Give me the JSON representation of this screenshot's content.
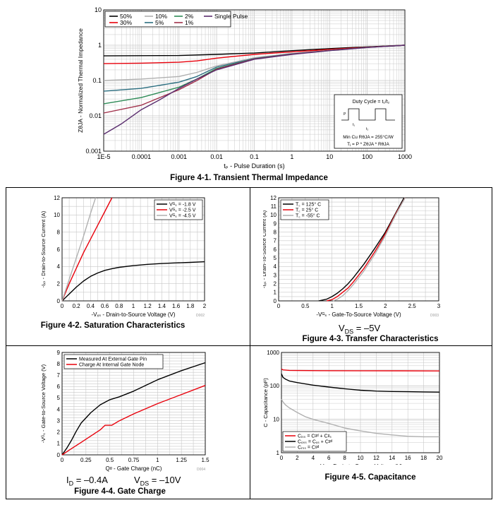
{
  "captions": {
    "fig1": "Figure 4-1. Transient Thermal Impedance",
    "fig2": "Figure 4-2. Saturation Characteristics",
    "fig3": "Figure 4-3. Transfer Characteristics",
    "fig4": "Figure 4-4. Gate Charge",
    "fig5": "Figure 4-5. Capacitance"
  },
  "conditions": {
    "fig3_vds": "V",
    "fig3_vds_sub": "DS",
    "fig3_vds_val": " = –5V",
    "fig4_id": "I",
    "fig4_id_sub": "D",
    "fig4_id_val": " = –0.4A",
    "fig4_vds": "V",
    "fig4_vds_sub": "DS",
    "fig4_vds_val": " = –10V"
  },
  "chart_data": [
    {
      "id": "fig1",
      "type": "line",
      "xscale": "log",
      "yscale": "log",
      "xlim": [
        1e-05,
        1000
      ],
      "ylim": [
        0.001,
        10
      ],
      "xticks": [
        1e-05,
        0.0001,
        0.001,
        0.01,
        0.1,
        1,
        10,
        100,
        1000
      ],
      "xtick_labels": [
        "1E-5",
        "0.0001",
        "0.001",
        "0.01",
        "0.1",
        "1",
        "10",
        "100",
        "1000"
      ],
      "yticks": [
        0.001,
        0.01,
        0.1,
        1,
        10
      ],
      "ytick_labels": [
        "0.001",
        "0.01",
        "0.1",
        "1",
        "10"
      ],
      "xlabel": "tₚ - Pulse Duration (s)",
      "ylabel": "ZθJA - Normalized Thermal Impedance",
      "grid": true,
      "legend_position": "top-left",
      "inset": {
        "line1": "Duty Cycle = t₁/t₂",
        "line2": "Min Cu RθJA = 255°C/W",
        "line3": "Tⱼ = P * ZθJA * RθJA",
        "t1": "t₁",
        "t2": "t₂",
        "p": "P"
      },
      "series": [
        {
          "name": "50%",
          "color": "#000000",
          "x": [
            1e-05,
            0.001,
            0.01,
            0.1,
            1,
            10,
            100,
            1000
          ],
          "y": [
            0.5,
            0.51,
            0.55,
            0.6,
            0.7,
            0.8,
            0.9,
            1.0
          ]
        },
        {
          "name": "30%",
          "color": "#e8000b",
          "x": [
            1e-05,
            0.0001,
            0.001,
            0.003,
            0.01,
            0.1,
            1,
            10,
            100,
            1000
          ],
          "y": [
            0.3,
            0.31,
            0.33,
            0.36,
            0.43,
            0.55,
            0.65,
            0.76,
            0.88,
            1.0
          ]
        },
        {
          "name": "10%",
          "color": "#b0b0b0",
          "x": [
            1e-05,
            0.0001,
            0.001,
            0.003,
            0.01,
            0.1,
            1,
            10,
            100,
            1000
          ],
          "y": [
            0.1,
            0.11,
            0.13,
            0.17,
            0.26,
            0.44,
            0.58,
            0.72,
            0.87,
            1.0
          ]
        },
        {
          "name": "5%",
          "color": "#2b6e80",
          "x": [
            1e-05,
            0.0001,
            0.001,
            0.003,
            0.01,
            0.1,
            1,
            10,
            100,
            1000
          ],
          "y": [
            0.05,
            0.06,
            0.09,
            0.13,
            0.24,
            0.42,
            0.57,
            0.71,
            0.87,
            1.0
          ]
        },
        {
          "name": "2%",
          "color": "#2e8b57",
          "x": [
            1e-05,
            0.0001,
            0.001,
            0.003,
            0.01,
            0.1,
            1,
            10,
            100,
            1000
          ],
          "y": [
            0.022,
            0.033,
            0.065,
            0.11,
            0.22,
            0.41,
            0.56,
            0.71,
            0.87,
            1.0
          ]
        },
        {
          "name": "1%",
          "color": "#a0304a",
          "x": [
            1e-05,
            0.0001,
            0.001,
            0.003,
            0.01,
            0.1,
            1,
            10,
            100,
            1000
          ],
          "y": [
            0.012,
            0.02,
            0.055,
            0.1,
            0.21,
            0.41,
            0.56,
            0.71,
            0.87,
            1.0
          ]
        },
        {
          "name": "Single Pulse",
          "color": "#5a2d6e",
          "x": [
            1e-05,
            3e-05,
            0.0001,
            0.0003,
            0.001,
            0.003,
            0.01,
            0.1,
            1,
            10,
            100,
            1000
          ],
          "y": [
            0.003,
            0.006,
            0.015,
            0.028,
            0.06,
            0.11,
            0.2,
            0.4,
            0.55,
            0.7,
            0.86,
            1.0
          ]
        }
      ]
    },
    {
      "id": "fig2",
      "type": "line",
      "xlim": [
        0,
        2
      ],
      "ylim": [
        0,
        12
      ],
      "xticks": [
        0,
        0.2,
        0.4,
        0.6,
        0.8,
        1,
        1.2,
        1.4,
        1.6,
        1.8,
        2
      ],
      "xtick_labels": [
        "0",
        "0.2",
        "0.4",
        "0.6",
        "0.8",
        "1",
        "1.2",
        "1.4",
        "1.6",
        "1.8",
        "2"
      ],
      "yticks": [
        0,
        2,
        4,
        6,
        8,
        10,
        12
      ],
      "ytick_labels": [
        "0",
        "2",
        "4",
        "6",
        "8",
        "10",
        "12"
      ],
      "xlabel": "-Vₓₛ - Drain-to-Source Voltage (V)",
      "ylabel": "-Iₓₛ - Drain-to-Source Current (A)",
      "note": "D002",
      "grid": true,
      "legend_position": "top-right",
      "series": [
        {
          "name": "Vᴳₛ = -1.8 V",
          "color": "#000000",
          "x": [
            0,
            0.1,
            0.2,
            0.3,
            0.4,
            0.5,
            0.6,
            0.7,
            0.8,
            1.0,
            1.2,
            1.4,
            1.6,
            1.8,
            2.0
          ],
          "y": [
            0,
            0.8,
            1.6,
            2.3,
            2.85,
            3.25,
            3.55,
            3.75,
            3.9,
            4.1,
            4.25,
            4.35,
            4.42,
            4.48,
            4.55
          ]
        },
        {
          "name": "Vᴳₛ = -2.5 V",
          "color": "#e8000b",
          "x": [
            0,
            0.1,
            0.2,
            0.3,
            0.4,
            0.5,
            0.6,
            0.7
          ],
          "y": [
            0,
            2.0,
            3.8,
            5.6,
            7.2,
            8.8,
            10.4,
            12
          ]
        },
        {
          "name": "Vᴳₛ = -4.5 V",
          "color": "#b0b0b0",
          "x": [
            0,
            0.1,
            0.2,
            0.3,
            0.4,
            0.47
          ],
          "y": [
            0,
            2.5,
            5.0,
            7.5,
            10.2,
            12
          ]
        }
      ]
    },
    {
      "id": "fig3",
      "type": "line",
      "xlim": [
        0,
        3
      ],
      "ylim": [
        0,
        12
      ],
      "xticks": [
        0,
        0.5,
        1,
        1.5,
        2,
        2.5,
        3
      ],
      "xtick_labels": [
        "0",
        "0.5",
        "1",
        "1.5",
        "2",
        "2.5",
        "3"
      ],
      "yticks": [
        0,
        1,
        2,
        3,
        4,
        5,
        6,
        7,
        8,
        9,
        10,
        11,
        12
      ],
      "ytick_labels": [
        "0",
        "1",
        "2",
        "3",
        "4",
        "5",
        "6",
        "7",
        "8",
        "9",
        "10",
        "11",
        "12"
      ],
      "xlabel": "-Vᴳₛ - Gate-To-Source Voltage (V)",
      "ylabel": "-Iₓₛ - Drain-To-Source Current (A)",
      "note": "D003",
      "grid": true,
      "legend_position": "top-left",
      "series": [
        {
          "name": "T꜀ = 125° C",
          "color": "#000000",
          "x": [
            0.75,
            0.9,
            1.0,
            1.1,
            1.2,
            1.3,
            1.4,
            1.5,
            1.6,
            1.8,
            2.0,
            2.2,
            2.35
          ],
          "y": [
            0,
            0.2,
            0.5,
            0.9,
            1.4,
            2.0,
            2.7,
            3.5,
            4.3,
            6.1,
            8.0,
            10.3,
            12
          ]
        },
        {
          "name": "T꜀ = 25° C",
          "color": "#e8000b",
          "x": [
            0.9,
            1.0,
            1.1,
            1.2,
            1.3,
            1.4,
            1.5,
            1.6,
            1.8,
            2.0,
            2.2,
            2.37
          ],
          "y": [
            0,
            0.15,
            0.5,
            1.0,
            1.5,
            2.2,
            3.0,
            3.8,
            5.7,
            7.8,
            10.2,
            12
          ]
        },
        {
          "name": "T꜀ = -55° C",
          "color": "#b0b0b0",
          "x": [
            1.02,
            1.1,
            1.2,
            1.3,
            1.4,
            1.5,
            1.6,
            1.8,
            2.0,
            2.2,
            2.37
          ],
          "y": [
            0,
            0.2,
            0.6,
            1.2,
            1.9,
            2.7,
            3.5,
            5.4,
            7.6,
            10.1,
            12
          ]
        }
      ]
    },
    {
      "id": "fig4",
      "type": "line",
      "xlim": [
        0,
        1.5
      ],
      "ylim": [
        0,
        9
      ],
      "xticks": [
        0,
        0.25,
        0.5,
        0.75,
        1,
        1.25,
        1.5
      ],
      "xtick_labels": [
        "0",
        "0.25",
        "0.5",
        "0.75",
        "1",
        "1.25",
        "1.5"
      ],
      "yticks": [
        0,
        1,
        2,
        3,
        4,
        5,
        6,
        7,
        8,
        9
      ],
      "ytick_labels": [
        "0",
        "1",
        "2",
        "3",
        "4",
        "5",
        "6",
        "7",
        "8",
        "9"
      ],
      "xlabel": "Qᵍ - Gate Charge (nC)",
      "ylabel": "-Vᴳₛ - Gate-to-Source Voltage (V)",
      "note": "D004",
      "grid": true,
      "legend_position": "top-left",
      "series": [
        {
          "name": "Measured At External Gate Pin",
          "color": "#000000",
          "x": [
            0,
            0.05,
            0.1,
            0.15,
            0.2,
            0.3,
            0.4,
            0.5,
            0.6,
            0.75,
            0.9,
            1.0,
            1.25,
            1.5
          ],
          "y": [
            0,
            0.6,
            1.3,
            2.1,
            2.8,
            3.7,
            4.4,
            4.85,
            5.1,
            5.6,
            6.2,
            6.6,
            7.4,
            8.1
          ]
        },
        {
          "name": "Charge At Internal Gate Node",
          "color": "#e8000b",
          "x": [
            0,
            0.1,
            0.2,
            0.3,
            0.4,
            0.45,
            0.5,
            0.52,
            0.6,
            0.75,
            1.0,
            1.25,
            1.5
          ],
          "y": [
            0,
            0.55,
            1.1,
            1.65,
            2.2,
            2.6,
            2.6,
            2.6,
            3.0,
            3.6,
            4.5,
            5.3,
            6.1
          ]
        }
      ]
    },
    {
      "id": "fig5",
      "type": "line",
      "yscale": "log",
      "xlim": [
        0,
        20
      ],
      "ylim": [
        1,
        1000
      ],
      "xticks": [
        0,
        2,
        4,
        6,
        8,
        10,
        12,
        14,
        16,
        18,
        20
      ],
      "xtick_labels": [
        "0",
        "2",
        "4",
        "6",
        "8",
        "10",
        "12",
        "14",
        "16",
        "18",
        "20"
      ],
      "yticks": [
        1,
        10,
        100,
        1000
      ],
      "ytick_labels": [
        "1",
        "10",
        "100",
        "1000"
      ],
      "xlabel": "-Vₓₛ - Drain-to-Source Voltage (V)",
      "ylabel": "C - Capacitance (pF)",
      "note": "D025",
      "grid": true,
      "legend_position": "bottom-left",
      "series": [
        {
          "name": "Cᵢₛₛ = Cᵍᵈ + Cᵍₛ",
          "color": "#e8000b",
          "x": [
            0,
            0.2,
            1,
            2,
            5,
            10,
            15,
            20
          ],
          "y": [
            320,
            300,
            290,
            288,
            285,
            283,
            282,
            280
          ]
        },
        {
          "name": "Cₒₛₛ = Cₓₛ + Cᵍᵈ",
          "color": "#000000",
          "x": [
            0,
            0.2,
            0.5,
            1,
            2,
            4,
            6,
            8,
            10,
            12,
            14,
            16,
            18,
            20
          ],
          "y": [
            230,
            180,
            160,
            140,
            125,
            105,
            92,
            82,
            74,
            70,
            68,
            67,
            66,
            65
          ]
        },
        {
          "name": "Cᵣₛₛ = Cᵍᵈ",
          "color": "#b0b0b0",
          "x": [
            0,
            0.2,
            0.5,
            1,
            2,
            3,
            4,
            6,
            8,
            10,
            12,
            14,
            16,
            18,
            20
          ],
          "y": [
            40,
            33,
            27,
            22,
            16,
            12,
            10,
            7.5,
            5.5,
            4.5,
            3.8,
            3.4,
            3.1,
            3.0,
            3.0
          ]
        }
      ]
    }
  ]
}
